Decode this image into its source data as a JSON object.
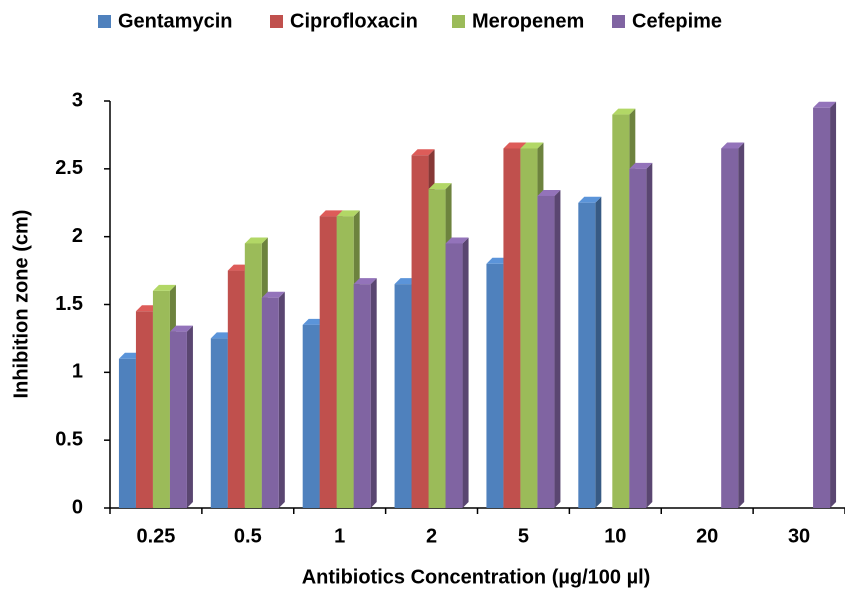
{
  "chart_data": {
    "type": "bar3d",
    "x_label": "Antibiotics Concentration  (µg/100 µl)",
    "y_label": "Inhibition zone (cm)",
    "categories": [
      "0.25",
      "0.5",
      "1",
      "2",
      "5",
      "10",
      "20",
      "30"
    ],
    "series": [
      {
        "name": "Gentamycin",
        "color": "#4f81bd",
        "values": [
          1.1,
          1.25,
          1.35,
          1.65,
          1.8,
          2.25,
          null,
          null
        ]
      },
      {
        "name": "Ciprofloxacin",
        "color": "#c0504d",
        "values": [
          1.45,
          1.75,
          2.15,
          2.6,
          2.65,
          null,
          null,
          null
        ]
      },
      {
        "name": "Meropenem",
        "color": "#9bbb59",
        "values": [
          1.6,
          1.95,
          2.15,
          2.35,
          2.65,
          2.9,
          null,
          null
        ]
      },
      {
        "name": "Cefepime",
        "color": "#8064a2",
        "values": [
          1.3,
          1.55,
          1.65,
          1.95,
          2.3,
          2.5,
          2.65,
          2.95
        ]
      }
    ],
    "ylim": [
      0,
      3
    ],
    "yticks": [
      0,
      0.5,
      1,
      1.5,
      2,
      2.5,
      3
    ],
    "legend": "top"
  }
}
